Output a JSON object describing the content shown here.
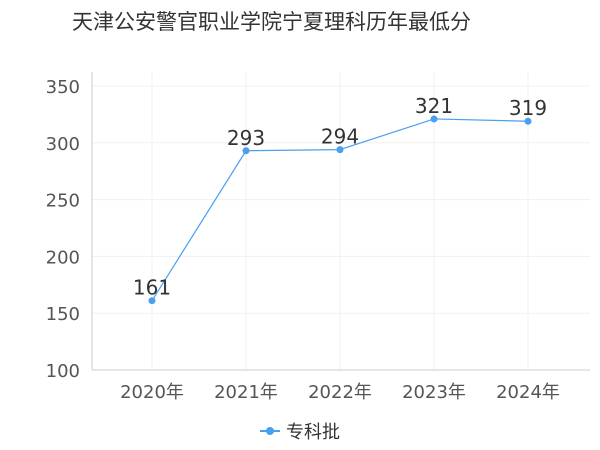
{
  "chart_data": {
    "type": "line",
    "title": "天津公安警官职业学院宁夏理科历年最低分",
    "categories": [
      "2020年",
      "2021年",
      "2022年",
      "2023年",
      "2024年"
    ],
    "series": [
      {
        "name": "专科批",
        "values": [
          161,
          293,
          294,
          321,
          319
        ],
        "color": "#4a9ff0"
      }
    ],
    "ylim": [
      100,
      350
    ],
    "yticks": [
      100,
      150,
      200,
      250,
      300,
      350
    ],
    "grid": true,
    "legend": "bottom"
  }
}
